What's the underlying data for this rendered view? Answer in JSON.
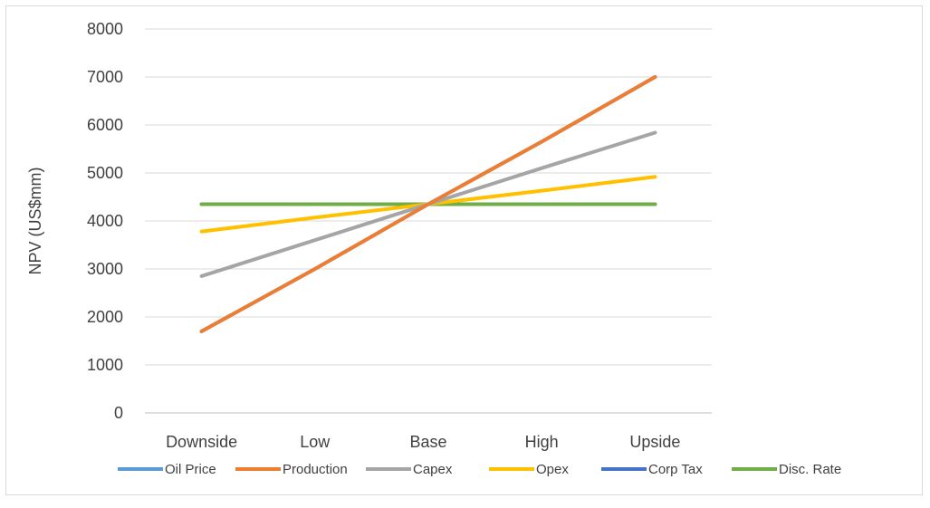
{
  "chart_data": {
    "type": "line",
    "categories": [
      "Downside",
      "Low",
      "Base",
      "High",
      "Upside"
    ],
    "ylabel": "NPV (US$mm)",
    "xlabel": "",
    "ylim": [
      0,
      8000
    ],
    "yticks": [
      0,
      1000,
      2000,
      3000,
      4000,
      5000,
      6000,
      7000,
      8000
    ],
    "grid": true,
    "legend_position": "bottom",
    "series": [
      {
        "name": "Oil Price",
        "color": "#5b9bd5",
        "values": [
          1700,
          3000,
          4350,
          5650,
          7000
        ]
      },
      {
        "name": "Production",
        "color": "#ed7d31",
        "values": [
          1700,
          3000,
          4350,
          5650,
          7000
        ]
      },
      {
        "name": "Capex",
        "color": "#a5a5a5",
        "values": [
          2850,
          3600,
          4350,
          5100,
          5840
        ]
      },
      {
        "name": "Opex",
        "color": "#ffc000",
        "values": [
          3780,
          4070,
          4350,
          4630,
          4920
        ]
      },
      {
        "name": "Corp Tax",
        "color": "#4472c4",
        "values": [
          4350,
          4350,
          4350,
          4350,
          4350
        ]
      },
      {
        "name": "Disc. Rate",
        "color": "#70ad47",
        "values": [
          4350,
          4350,
          4350,
          4350,
          4350
        ]
      }
    ]
  }
}
